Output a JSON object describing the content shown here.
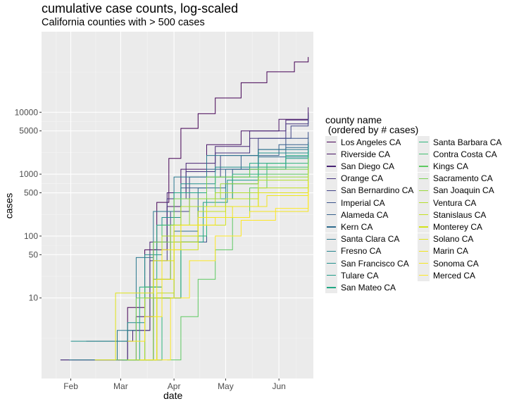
{
  "chart_data": {
    "type": "line",
    "title": "cumulative case counts, log-scaled",
    "subtitle": "California counties with > 500 cases",
    "xlabel": "date",
    "ylabel": "cases",
    "y_scale": "log10",
    "xlim": [
      "2020-01-15",
      "2020-06-21"
    ],
    "ylim": [
      0.5,
      200000
    ],
    "x_ticks": [
      {
        "label": "Feb",
        "date": "2020-02-01"
      },
      {
        "label": "Mar",
        "date": "2020-03-01"
      },
      {
        "label": "Apr",
        "date": "2020-04-01"
      },
      {
        "label": "May",
        "date": "2020-05-01"
      },
      {
        "label": "Jun",
        "date": "2020-06-01"
      }
    ],
    "y_ticks": [
      10,
      50,
      100,
      500,
      1000,
      5000,
      10000
    ],
    "y_tick_labels": [
      "10",
      "50",
      "100",
      "500",
      "1000",
      "5000",
      "10000"
    ],
    "grid": true,
    "legend_title": "county name\n (ordered by # cases)",
    "legend_position": "right",
    "series": [
      {
        "name": "Los Angeles CA",
        "color": "#440154",
        "points": [
          [
            "2020-01-26",
            1
          ],
          [
            "2020-03-05",
            7
          ],
          [
            "2020-03-15",
            60
          ],
          [
            "2020-03-22",
            350
          ],
          [
            "2020-03-29",
            1800
          ],
          [
            "2020-04-05",
            5500
          ],
          [
            "2020-04-15",
            9500
          ],
          [
            "2020-04-25",
            17000
          ],
          [
            "2020-05-10",
            30000
          ],
          [
            "2020-05-25",
            45000
          ],
          [
            "2020-06-10",
            65000
          ],
          [
            "2020-06-18",
            78000
          ]
        ]
      },
      {
        "name": "Riverside CA",
        "color": "#471365",
        "points": [
          [
            "2020-02-28",
            1
          ],
          [
            "2020-03-10",
            5
          ],
          [
            "2020-03-20",
            60
          ],
          [
            "2020-03-28",
            300
          ],
          [
            "2020-04-05",
            1200
          ],
          [
            "2020-04-20",
            3000
          ],
          [
            "2020-05-10",
            5000
          ],
          [
            "2020-06-01",
            7700
          ],
          [
            "2020-06-18",
            12000
          ]
        ]
      },
      {
        "name": "San Diego CA",
        "color": "#482374",
        "points": [
          [
            "2020-02-10",
            2
          ],
          [
            "2020-03-08",
            3
          ],
          [
            "2020-03-18",
            80
          ],
          [
            "2020-03-28",
            500
          ],
          [
            "2020-04-08",
            1500
          ],
          [
            "2020-04-25",
            2800
          ],
          [
            "2020-05-15",
            5000
          ],
          [
            "2020-06-05",
            7500
          ],
          [
            "2020-06-18",
            10000
          ]
        ]
      },
      {
        "name": "Orange CA",
        "color": "#463480",
        "points": [
          [
            "2020-01-26",
            1
          ],
          [
            "2020-03-05",
            3
          ],
          [
            "2020-03-18",
            40
          ],
          [
            "2020-03-28",
            400
          ],
          [
            "2020-04-08",
            1100
          ],
          [
            "2020-04-25",
            2200
          ],
          [
            "2020-05-15",
            3800
          ],
          [
            "2020-06-05",
            6500
          ],
          [
            "2020-06-18",
            9000
          ]
        ]
      },
      {
        "name": "San Bernardino CA",
        "color": "#414487",
        "points": [
          [
            "2020-03-10",
            1
          ],
          [
            "2020-03-20",
            20
          ],
          [
            "2020-03-30",
            250
          ],
          [
            "2020-04-10",
            900
          ],
          [
            "2020-04-28",
            2000
          ],
          [
            "2020-05-20",
            3800
          ],
          [
            "2020-06-08",
            6000
          ],
          [
            "2020-06-18",
            8000
          ]
        ]
      },
      {
        "name": "Imperial CA",
        "color": "#3B528B",
        "points": [
          [
            "2020-03-14",
            1
          ],
          [
            "2020-03-25",
            10
          ],
          [
            "2020-04-05",
            80
          ],
          [
            "2020-04-20",
            400
          ],
          [
            "2020-05-05",
            1200
          ],
          [
            "2020-05-20",
            2500
          ],
          [
            "2020-06-05",
            3800
          ],
          [
            "2020-06-18",
            4800
          ]
        ]
      },
      {
        "name": "Alameda CA",
        "color": "#35608D",
        "points": [
          [
            "2020-03-02",
            1
          ],
          [
            "2020-03-15",
            15
          ],
          [
            "2020-03-25",
            200
          ],
          [
            "2020-04-05",
            600
          ],
          [
            "2020-04-20",
            1200
          ],
          [
            "2020-05-10",
            2000
          ],
          [
            "2020-06-01",
            3000
          ],
          [
            "2020-06-18",
            3900
          ]
        ]
      },
      {
        "name": "Kern CA",
        "color": "#2F6C8E",
        "points": [
          [
            "2020-03-12",
            1
          ],
          [
            "2020-03-22",
            10
          ],
          [
            "2020-04-01",
            120
          ],
          [
            "2020-04-15",
            600
          ],
          [
            "2020-05-01",
            1200
          ],
          [
            "2020-05-20",
            1900
          ],
          [
            "2020-06-05",
            2700
          ],
          [
            "2020-06-18",
            3300
          ]
        ]
      },
      {
        "name": "Santa Clara CA",
        "color": "#2A788E",
        "points": [
          [
            "2020-01-31",
            1
          ],
          [
            "2020-02-28",
            3
          ],
          [
            "2020-03-10",
            45
          ],
          [
            "2020-03-20",
            250
          ],
          [
            "2020-04-01",
            900
          ],
          [
            "2020-04-20",
            2000
          ],
          [
            "2020-05-20",
            2500
          ],
          [
            "2020-06-18",
            3000
          ]
        ]
      },
      {
        "name": "Fresno CA",
        "color": "#25848E",
        "points": [
          [
            "2020-03-08",
            1
          ],
          [
            "2020-03-20",
            10
          ],
          [
            "2020-04-01",
            80
          ],
          [
            "2020-04-15",
            300
          ],
          [
            "2020-05-01",
            700
          ],
          [
            "2020-05-20",
            1200
          ],
          [
            "2020-06-05",
            1900
          ],
          [
            "2020-06-18",
            2600
          ]
        ]
      },
      {
        "name": "San Francisco CA",
        "color": "#21908C",
        "points": [
          [
            "2020-02-01",
            2
          ],
          [
            "2020-03-05",
            4
          ],
          [
            "2020-03-15",
            50
          ],
          [
            "2020-03-25",
            200
          ],
          [
            "2020-04-05",
            700
          ],
          [
            "2020-04-25",
            1300
          ],
          [
            "2020-05-20",
            2200
          ],
          [
            "2020-06-18",
            3000
          ]
        ]
      },
      {
        "name": "Tulare CA",
        "color": "#1E9C89",
        "points": [
          [
            "2020-03-12",
            1
          ],
          [
            "2020-03-25",
            10
          ],
          [
            "2020-04-05",
            80
          ],
          [
            "2020-04-18",
            350
          ],
          [
            "2020-05-02",
            800
          ],
          [
            "2020-05-20",
            1300
          ],
          [
            "2020-06-05",
            1800
          ],
          [
            "2020-06-18",
            2400
          ]
        ]
      },
      {
        "name": "San Mateo CA",
        "color": "#22A884",
        "points": [
          [
            "2020-03-02",
            1
          ],
          [
            "2020-03-12",
            15
          ],
          [
            "2020-03-22",
            150
          ],
          [
            "2020-04-01",
            500
          ],
          [
            "2020-04-20",
            900
          ],
          [
            "2020-05-15",
            1500
          ],
          [
            "2020-06-05",
            2000
          ],
          [
            "2020-06-18",
            2300
          ]
        ]
      },
      {
        "name": "Santa Barbara CA",
        "color": "#2FB47C",
        "points": [
          [
            "2020-03-15",
            1
          ],
          [
            "2020-03-25",
            10
          ],
          [
            "2020-04-05",
            100
          ],
          [
            "2020-04-20",
            400
          ],
          [
            "2020-05-05",
            1000
          ],
          [
            "2020-05-25",
            1500
          ],
          [
            "2020-06-18",
            2000
          ]
        ]
      },
      {
        "name": "Contra Costa CA",
        "color": "#43BF71",
        "points": [
          [
            "2020-03-03",
            1
          ],
          [
            "2020-03-15",
            15
          ],
          [
            "2020-03-25",
            150
          ],
          [
            "2020-04-05",
            400
          ],
          [
            "2020-04-25",
            900
          ],
          [
            "2020-05-20",
            1300
          ],
          [
            "2020-06-18",
            1900
          ]
        ]
      },
      {
        "name": "Kings CA",
        "color": "#5EC962",
        "points": [
          [
            "2020-03-28",
            1
          ],
          [
            "2020-04-05",
            5
          ],
          [
            "2020-04-15",
            20
          ],
          [
            "2020-04-25",
            60
          ],
          [
            "2020-05-05",
            200
          ],
          [
            "2020-05-15",
            600
          ],
          [
            "2020-05-25",
            1000
          ],
          [
            "2020-06-18",
            1600
          ]
        ]
      },
      {
        "name": "Sacramento CA",
        "color": "#7AD151",
        "points": [
          [
            "2020-02-26",
            1
          ],
          [
            "2020-03-10",
            10
          ],
          [
            "2020-03-20",
            80
          ],
          [
            "2020-04-01",
            400
          ],
          [
            "2020-04-20",
            900
          ],
          [
            "2020-05-15",
            1200
          ],
          [
            "2020-06-18",
            1800
          ]
        ]
      },
      {
        "name": "San Joaquin CA",
        "color": "#9AD93C",
        "points": [
          [
            "2020-03-10",
            1
          ],
          [
            "2020-03-20",
            20
          ],
          [
            "2020-03-30",
            150
          ],
          [
            "2020-04-10",
            400
          ],
          [
            "2020-04-28",
            700
          ],
          [
            "2020-05-20",
            900
          ],
          [
            "2020-06-18",
            1400
          ]
        ]
      },
      {
        "name": "Ventura CA",
        "color": "#B4DE2C",
        "points": [
          [
            "2020-03-05",
            1
          ],
          [
            "2020-03-15",
            10
          ],
          [
            "2020-03-25",
            100
          ],
          [
            "2020-04-05",
            300
          ],
          [
            "2020-04-25",
            500
          ],
          [
            "2020-05-20",
            800
          ],
          [
            "2020-06-18",
            1200
          ]
        ]
      },
      {
        "name": "Stanislaus CA",
        "color": "#C4E021",
        "points": [
          [
            "2020-03-12",
            1
          ],
          [
            "2020-03-22",
            12
          ],
          [
            "2020-04-01",
            80
          ],
          [
            "2020-04-15",
            250
          ],
          [
            "2020-05-01",
            400
          ],
          [
            "2020-05-20",
            600
          ],
          [
            "2020-06-18",
            900
          ]
        ]
      },
      {
        "name": "Monterey CA",
        "color": "#D2E21B",
        "points": [
          [
            "2020-03-12",
            1
          ],
          [
            "2020-03-22",
            10
          ],
          [
            "2020-04-01",
            60
          ],
          [
            "2020-04-15",
            150
          ],
          [
            "2020-05-01",
            300
          ],
          [
            "2020-05-20",
            500
          ],
          [
            "2020-06-18",
            800
          ]
        ]
      },
      {
        "name": "Solano CA",
        "color": "#E0E318",
        "points": [
          [
            "2020-02-15",
            1
          ],
          [
            "2020-02-27",
            12
          ],
          [
            "2020-03-10",
            12
          ],
          [
            "2020-03-20",
            40
          ],
          [
            "2020-04-01",
            150
          ],
          [
            "2020-04-20",
            300
          ],
          [
            "2020-05-20",
            500
          ],
          [
            "2020-06-18",
            750
          ]
        ]
      },
      {
        "name": "Marin CA",
        "color": "#F0E51C",
        "points": [
          [
            "2020-03-12",
            1
          ],
          [
            "2020-03-22",
            20
          ],
          [
            "2020-04-01",
            100
          ],
          [
            "2020-04-15",
            200
          ],
          [
            "2020-05-05",
            300
          ],
          [
            "2020-05-25",
            450
          ],
          [
            "2020-06-18",
            600
          ]
        ]
      },
      {
        "name": "Sonoma CA",
        "color": "#F5E61F",
        "points": [
          [
            "2020-03-05",
            2
          ],
          [
            "2020-03-15",
            5
          ],
          [
            "2020-03-25",
            60
          ],
          [
            "2020-04-05",
            150
          ],
          [
            "2020-04-25",
            200
          ],
          [
            "2020-05-15",
            250
          ],
          [
            "2020-06-18",
            550
          ]
        ]
      },
      {
        "name": "Merced CA",
        "color": "#FDE725",
        "points": [
          [
            "2020-03-20",
            1
          ],
          [
            "2020-03-30",
            10
          ],
          [
            "2020-04-10",
            40
          ],
          [
            "2020-04-25",
            100
          ],
          [
            "2020-05-10",
            180
          ],
          [
            "2020-05-30",
            280
          ],
          [
            "2020-06-18",
            500
          ]
        ]
      }
    ]
  }
}
